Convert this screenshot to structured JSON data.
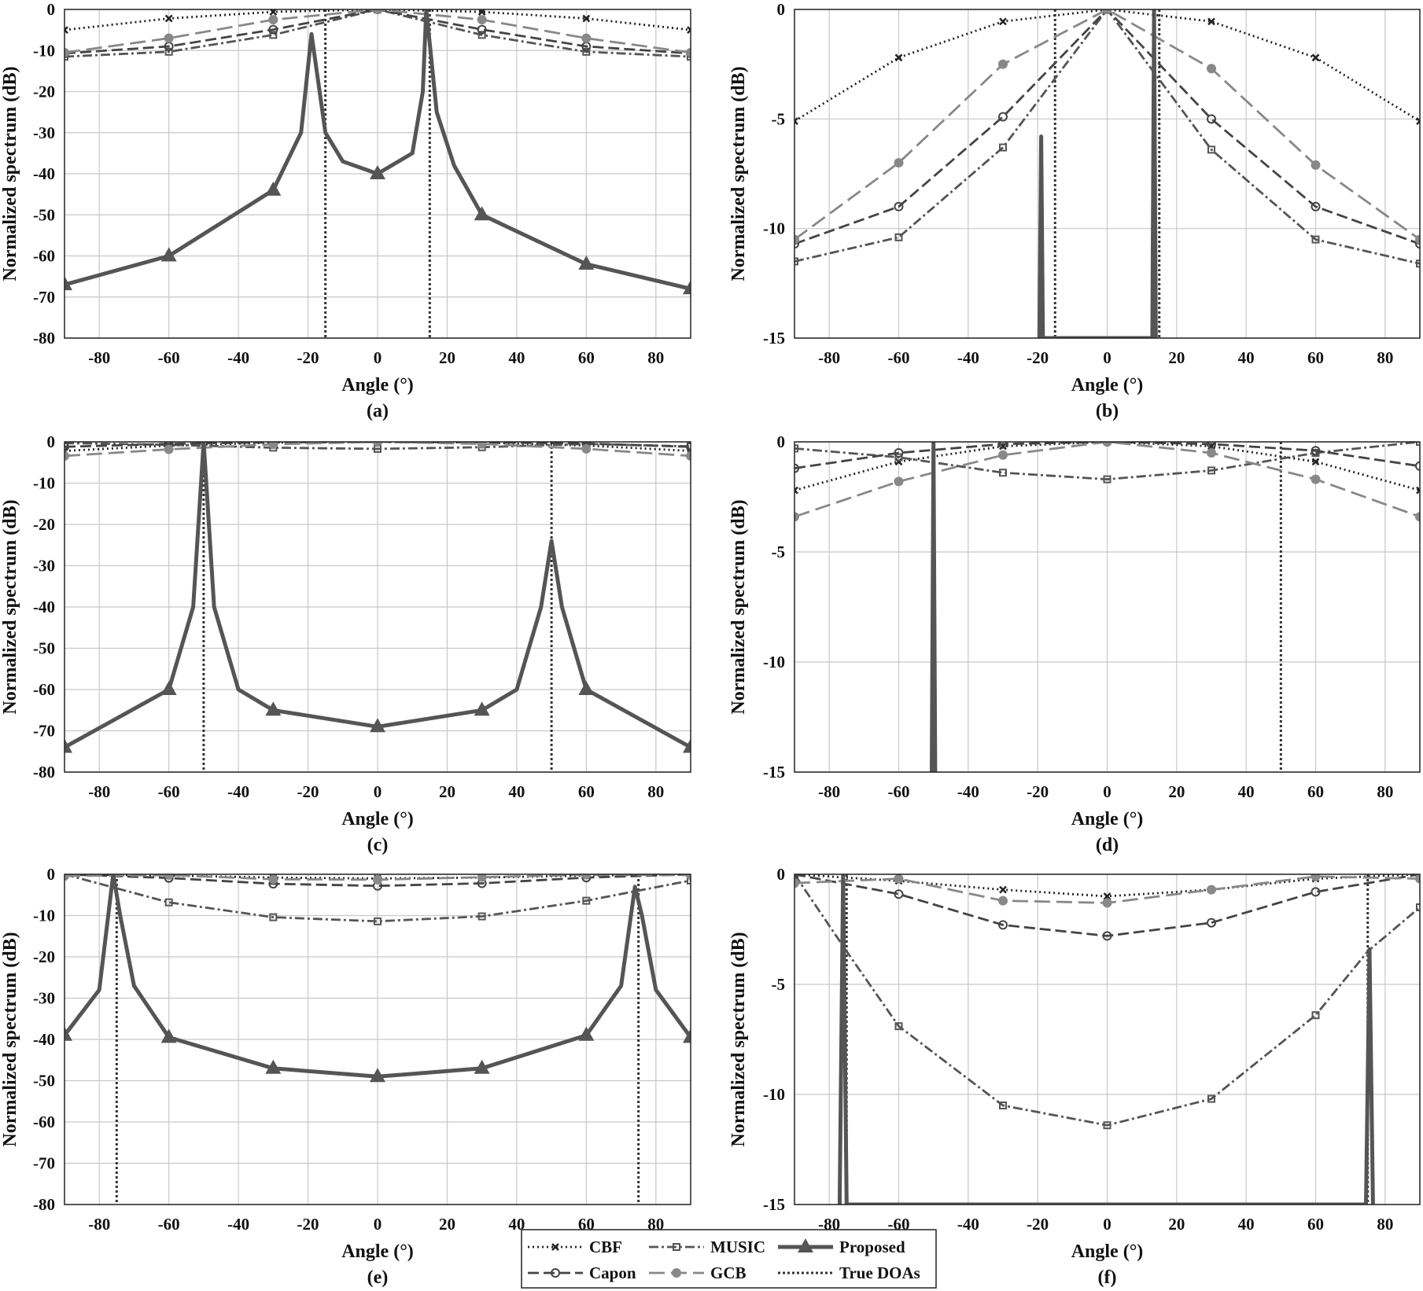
{
  "chart_data": [
    {
      "type": "line",
      "caption": "(a)",
      "xlabel": "Angle (°)",
      "ylabel": "Normalized spectrum (dB)",
      "xlim": [
        -90,
        90
      ],
      "ylim": [
        -80,
        0
      ],
      "xticks": [
        -80,
        -60,
        -40,
        -20,
        0,
        20,
        40,
        60,
        80
      ],
      "yticks": [
        0,
        -10,
        -20,
        -30,
        -40,
        -50,
        -60,
        -70,
        -80
      ],
      "grid": true,
      "true_doas": [
        -15,
        15
      ],
      "series": [
        {
          "name": "CBF",
          "x": [
            -90,
            -60,
            -30,
            0,
            30,
            60,
            90
          ],
          "y": [
            -5,
            -2.2,
            -0.6,
            0,
            -0.6,
            -2.2,
            -5
          ]
        },
        {
          "name": "MUSIC",
          "x": [
            -90,
            -60,
            -30,
            0,
            30,
            60,
            90
          ],
          "y": [
            -11.5,
            -10.3,
            -6.2,
            0,
            -6.2,
            -10.3,
            -11.5
          ]
        },
        {
          "name": "Capon",
          "x": [
            -90,
            -60,
            -30,
            0,
            30,
            60,
            90
          ],
          "y": [
            -10.7,
            -9,
            -4.9,
            0,
            -4.9,
            -9,
            -10.7
          ]
        },
        {
          "name": "GCB",
          "x": [
            -90,
            -60,
            -30,
            0,
            30,
            60,
            90
          ],
          "y": [
            -10.5,
            -7,
            -2.5,
            0,
            -2.5,
            -7,
            -10.5
          ]
        },
        {
          "name": "Proposed",
          "x": [
            -90,
            -60,
            -30,
            -22,
            -19,
            -15,
            -10,
            0,
            10,
            13,
            14,
            17,
            22,
            30,
            60,
            90
          ],
          "y": [
            -67,
            -60,
            -44,
            -30,
            -6,
            -30,
            -37,
            -40,
            -35,
            -20,
            0,
            -25,
            -38,
            -50,
            -62,
            -68
          ]
        }
      ]
    },
    {
      "type": "line",
      "caption": "(b)",
      "xlabel": "Angle (°)",
      "ylabel": "Normalized spectrum (dB)",
      "xlim": [
        -90,
        90
      ],
      "ylim": [
        -15,
        0
      ],
      "xticks": [
        -80,
        -60,
        -40,
        -20,
        0,
        20,
        40,
        60,
        80
      ],
      "yticks": [
        0,
        -5,
        -10,
        -15
      ],
      "grid": true,
      "true_doas": [
        -15,
        15
      ],
      "series": [
        {
          "name": "CBF",
          "x": [
            -90,
            -60,
            -30,
            0,
            30,
            60,
            90
          ],
          "y": [
            -5.1,
            -2.2,
            -0.55,
            0,
            -0.55,
            -2.2,
            -5.1
          ]
        },
        {
          "name": "MUSIC",
          "x": [
            -90,
            -60,
            -30,
            0,
            30,
            60,
            90
          ],
          "y": [
            -11.5,
            -10.4,
            -6.3,
            0,
            -6.4,
            -10.5,
            -11.6
          ]
        },
        {
          "name": "Capon",
          "x": [
            -90,
            -60,
            -30,
            0,
            30,
            60,
            90
          ],
          "y": [
            -10.7,
            -9,
            -4.9,
            0,
            -5,
            -9,
            -10.7
          ]
        },
        {
          "name": "GCB",
          "x": [
            -90,
            -60,
            -30,
            0,
            30,
            60,
            90
          ],
          "y": [
            -10.5,
            -7,
            -2.5,
            0,
            -2.7,
            -7.1,
            -10.5
          ]
        },
        {
          "name": "Proposed",
          "x": [
            -19.5,
            -19,
            -18.5,
            13,
            13.5,
            14
          ],
          "y": [
            -15,
            -5.8,
            -15,
            -15,
            0,
            -15
          ]
        }
      ]
    },
    {
      "type": "line",
      "caption": "(c)",
      "xlabel": "Angle (°)",
      "ylabel": "Normalized spectrum (dB)",
      "xlim": [
        -90,
        90
      ],
      "ylim": [
        -80,
        0
      ],
      "xticks": [
        -80,
        -60,
        -40,
        -20,
        0,
        20,
        40,
        60,
        80
      ],
      "yticks": [
        0,
        -10,
        -20,
        -30,
        -40,
        -50,
        -60,
        -70,
        -80
      ],
      "grid": true,
      "true_doas": [
        -50,
        50
      ],
      "series": [
        {
          "name": "CBF",
          "x": [
            -90,
            -60,
            -30,
            0,
            30,
            60,
            90
          ],
          "y": [
            -2.2,
            -0.9,
            -0.2,
            0,
            -0.2,
            -0.9,
            -2.2
          ]
        },
        {
          "name": "MUSIC",
          "x": [
            -90,
            -60,
            -30,
            0,
            30,
            60,
            90
          ],
          "y": [
            -0.3,
            -0.7,
            -1.4,
            -1.7,
            -1.3,
            -0.5,
            -1.1
          ]
        },
        {
          "name": "Capon",
          "x": [
            -90,
            -60,
            -30,
            0,
            30,
            60,
            90
          ],
          "y": [
            -1.2,
            -0.5,
            -0.1,
            0,
            -0.1,
            -0.4,
            -1.2
          ]
        },
        {
          "name": "GCB",
          "x": [
            -90,
            -60,
            -30,
            0,
            30,
            60,
            90
          ],
          "y": [
            -3.4,
            -1.8,
            -0.6,
            0,
            -0.5,
            -1.7,
            -3.4
          ]
        },
        {
          "name": "Proposed",
          "x": [
            -90,
            -60,
            -53,
            -50,
            -47,
            -40,
            -30,
            0,
            30,
            40,
            47,
            50,
            53,
            60,
            90
          ],
          "y": [
            -74,
            -60,
            -40,
            0,
            -40,
            -60,
            -65,
            -69,
            -65,
            -60,
            -40,
            -24,
            -40,
            -60,
            -74
          ]
        }
      ]
    },
    {
      "type": "line",
      "caption": "(d)",
      "xlabel": "Angle (°)",
      "ylabel": "Normalized spectrum (dB)",
      "xlim": [
        -90,
        90
      ],
      "ylim": [
        -15,
        0
      ],
      "xticks": [
        -80,
        -60,
        -40,
        -20,
        0,
        20,
        40,
        60,
        80
      ],
      "yticks": [
        0,
        -5,
        -10,
        -15
      ],
      "grid": true,
      "true_doas": [
        -50,
        50
      ],
      "series": [
        {
          "name": "CBF",
          "x": [
            -90,
            -60,
            -30,
            0,
            30,
            60,
            90
          ],
          "y": [
            -2.2,
            -0.9,
            -0.2,
            0,
            -0.2,
            -0.9,
            -2.2
          ]
        },
        {
          "name": "MUSIC",
          "x": [
            -90,
            -60,
            -30,
            0,
            30,
            60,
            90
          ],
          "y": [
            -0.3,
            -0.7,
            -1.4,
            -1.7,
            -1.3,
            -0.5,
            0
          ]
        },
        {
          "name": "Capon",
          "x": [
            -90,
            -60,
            -30,
            0,
            30,
            60,
            90
          ],
          "y": [
            -1.2,
            -0.5,
            -0.1,
            0,
            -0.1,
            -0.4,
            -1.1
          ]
        },
        {
          "name": "GCB",
          "x": [
            -90,
            -60,
            -30,
            0,
            30,
            60,
            90
          ],
          "y": [
            -3.4,
            -1.8,
            -0.6,
            0,
            -0.5,
            -1.7,
            -3.4
          ]
        },
        {
          "name": "Proposed",
          "x": [
            -50.5,
            -50,
            -49.5
          ],
          "y": [
            -15,
            0,
            -15
          ]
        }
      ]
    },
    {
      "type": "line",
      "caption": "(e)",
      "xlabel": "Angle (°)",
      "ylabel": "Normalized spectrum (dB)",
      "xlim": [
        -90,
        90
      ],
      "ylim": [
        -80,
        0
      ],
      "xticks": [
        -80,
        -60,
        -40,
        -20,
        0,
        20,
        40,
        60,
        80
      ],
      "yticks": [
        0,
        -10,
        -20,
        -30,
        -40,
        -50,
        -60,
        -70,
        -80
      ],
      "grid": true,
      "true_doas": [
        -75,
        75
      ],
      "series": [
        {
          "name": "CBF",
          "x": [
            -90,
            -60,
            -30,
            0,
            30,
            60,
            90
          ],
          "y": [
            0,
            -0.3,
            -0.8,
            -1,
            -0.8,
            -0.3,
            0
          ]
        },
        {
          "name": "MUSIC",
          "x": [
            -90,
            -60,
            -30,
            0,
            30,
            60,
            90
          ],
          "y": [
            0,
            -6.8,
            -10.4,
            -11.4,
            -10.2,
            -6.4,
            -1.5
          ]
        },
        {
          "name": "Capon",
          "x": [
            -90,
            -60,
            -30,
            0,
            30,
            60,
            90
          ],
          "y": [
            0,
            -0.9,
            -2.3,
            -2.8,
            -2.2,
            -0.8,
            0
          ]
        },
        {
          "name": "GCB",
          "x": [
            -90,
            -60,
            -30,
            0,
            30,
            60,
            90
          ],
          "y": [
            -0.4,
            -0.2,
            -1.2,
            -1.3,
            -0.7,
            -0.1,
            -0.2
          ]
        },
        {
          "name": "Proposed",
          "x": [
            -90,
            -80,
            -76,
            -74,
            -70,
            -60,
            -30,
            0,
            30,
            60,
            70,
            74,
            76,
            80,
            90
          ],
          "y": [
            -39,
            -28,
            0,
            -10,
            -27,
            -39.5,
            -47,
            -49,
            -47,
            -39,
            -27,
            -3,
            -10,
            -28,
            -39.5
          ]
        }
      ]
    },
    {
      "type": "line",
      "caption": "(f)",
      "xlabel": "Angle (°)",
      "ylabel": "Normalized spectrum (dB)",
      "xlim": [
        -90,
        90
      ],
      "ylim": [
        -15,
        0
      ],
      "xticks": [
        -80,
        -60,
        -40,
        -20,
        0,
        20,
        40,
        60,
        80
      ],
      "yticks": [
        0,
        -5,
        -10,
        -15
      ],
      "grid": true,
      "true_doas": [
        -75,
        75
      ],
      "series": [
        {
          "name": "CBF",
          "x": [
            -90,
            -60,
            -30,
            0,
            30,
            60,
            90
          ],
          "y": [
            0,
            -0.3,
            -0.7,
            -1,
            -0.7,
            -0.2,
            0
          ]
        },
        {
          "name": "MUSIC",
          "x": [
            -90,
            -75,
            -60,
            -30,
            0,
            30,
            60,
            75,
            90
          ],
          "y": [
            0,
            -3.5,
            -6.9,
            -10.5,
            -11.4,
            -10.2,
            -6.4,
            -3.5,
            -1.5
          ]
        },
        {
          "name": "Capon",
          "x": [
            -90,
            -60,
            -30,
            0,
            30,
            60,
            90
          ],
          "y": [
            0,
            -0.9,
            -2.3,
            -2.8,
            -2.2,
            -0.8,
            0
          ]
        },
        {
          "name": "GCB",
          "x": [
            -90,
            -60,
            -30,
            0,
            30,
            60,
            90
          ],
          "y": [
            -0.4,
            -0.2,
            -1.2,
            -1.3,
            -0.7,
            -0.1,
            -0.2
          ]
        },
        {
          "name": "Proposed",
          "x": [
            -77,
            -76,
            -75,
            74.5,
            75.5,
            76.5
          ],
          "y": [
            -15,
            0,
            -15,
            -15,
            -3.4,
            -15
          ]
        }
      ]
    }
  ],
  "legend": {
    "placement": "bottom-center",
    "entries": [
      {
        "label": "CBF",
        "series": "CBF"
      },
      {
        "label": "MUSIC",
        "series": "MUSIC"
      },
      {
        "label": "Proposed",
        "series": "Proposed"
      },
      {
        "label": "Capon",
        "series": "Capon"
      },
      {
        "label": "GCB",
        "series": "GCB"
      },
      {
        "label": "True DOAs",
        "series": "True DOAs"
      }
    ]
  },
  "styles": {
    "CBF": {
      "color": "#222222",
      "dash": "2,4",
      "marker": "x"
    },
    "MUSIC": {
      "color": "#555555",
      "dash": "12,4,3,4",
      "marker": "square"
    },
    "Capon": {
      "color": "#444444",
      "dash": "14,6",
      "marker": "circle"
    },
    "GCB": {
      "color": "#888888",
      "dash": "20,8",
      "marker": "dot"
    },
    "Proposed": {
      "color": "#555555",
      "dash": "",
      "marker": "triangle"
    },
    "True DOAs": {
      "color": "#333333",
      "dash": "3,3",
      "marker": "none"
    }
  }
}
